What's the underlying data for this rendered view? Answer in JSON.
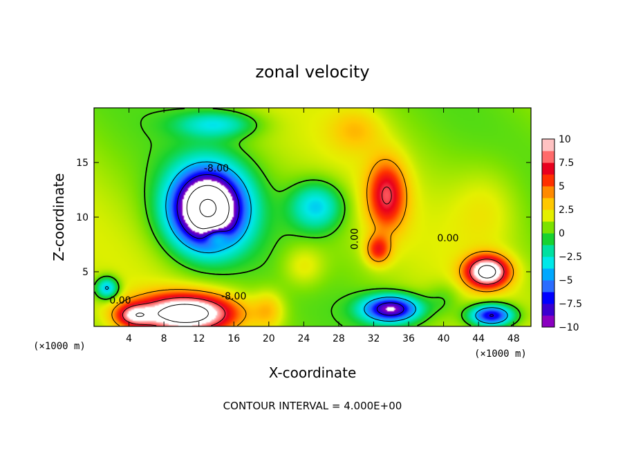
{
  "chart_data": {
    "type": "heatmap",
    "title": "zonal velocity",
    "xlabel": "X-coordinate",
    "ylabel": "Z-coordinate",
    "x_unit_label": "(×1000 m)",
    "xlim": [
      0,
      50
    ],
    "ylim": [
      0,
      20
    ],
    "x_ticks": [
      4,
      8,
      12,
      16,
      20,
      24,
      28,
      32,
      36,
      40,
      44,
      48
    ],
    "y_ticks": [
      5,
      10,
      15
    ],
    "colorbar": {
      "ticks": [
        "10",
        "7.5",
        "5",
        "2.5",
        "0",
        "−2.5",
        "−5",
        "−7.5",
        "−10"
      ],
      "min": -10,
      "max": 10,
      "colors": [
        "#8a00c0",
        "#3a00d0",
        "#0000ff",
        "#2b6cff",
        "#00a8ff",
        "#00e8e8",
        "#00e0a0",
        "#18d230",
        "#7ce200",
        "#e4f000",
        "#ffc800",
        "#ff8a00",
        "#ff3000",
        "#e8001e",
        "#ff6a6a",
        "#ffc2c2"
      ]
    },
    "contour_interval": 4.0,
    "contour_labels": [
      {
        "text": "-8.00",
        "x": 14,
        "z": 14.5
      },
      {
        "text": "0.00",
        "x": 29.8,
        "z": 8.0,
        "rotate": -90
      },
      {
        "text": "0.00",
        "x": 40.5,
        "z": 8.1
      },
      {
        "text": "-8.00",
        "x": 16,
        "z": 2.8
      },
      {
        "text": "0.00",
        "x": 3.0,
        "z": 2.4
      }
    ],
    "features": [
      {
        "x": 13,
        "z": 10.8,
        "sx": 4.2,
        "sz": 3.6,
        "amp": -17
      },
      {
        "x": 14,
        "z": 8.2,
        "sx": 1.3,
        "sz": 0.8,
        "amp": 4
      },
      {
        "x": 25.5,
        "z": 11,
        "sx": 3.0,
        "sz": 2.2,
        "amp": -5
      },
      {
        "x": 14,
        "z": 18.5,
        "sx": 4.5,
        "sz": 1.2,
        "amp": -4
      },
      {
        "x": 33.5,
        "z": 12,
        "sx": 2.2,
        "sz": 3.2,
        "amp": 6.5
      },
      {
        "x": 32.5,
        "z": 7,
        "sx": 1.4,
        "sz": 1.3,
        "amp": 5
      },
      {
        "x": 45,
        "z": 5,
        "sx": 2.4,
        "sz": 1.4,
        "amp": 12
      },
      {
        "x": 10.5,
        "z": 1.2,
        "sx": 5.5,
        "sz": 1.7,
        "amp": 13
      },
      {
        "x": 4.5,
        "z": 1.0,
        "sx": 2.0,
        "sz": 1.0,
        "amp": 6
      },
      {
        "x": 34,
        "z": 1.6,
        "sx": 3.2,
        "sz": 1.2,
        "amp": -11
      },
      {
        "x": 45.5,
        "z": 1.0,
        "sx": 2.5,
        "sz": 1.0,
        "amp": -10
      },
      {
        "x": 1.5,
        "z": 3.5,
        "sx": 1.3,
        "sz": 1.0,
        "amp": -6
      },
      {
        "x": 24,
        "z": 5.5,
        "sx": 2.5,
        "sz": 2.0,
        "amp": 2
      },
      {
        "x": 30,
        "z": 18,
        "sx": 3.0,
        "sz": 2.0,
        "amp": 2
      },
      {
        "x": 45,
        "z": 11,
        "sx": 4.0,
        "sz": 4.0,
        "amp": 1.5
      },
      {
        "x": 20,
        "z": 1.5,
        "sx": 1.8,
        "sz": 1.8,
        "amp": 2.5
      },
      {
        "x": 40,
        "z": 2.5,
        "sx": 2.0,
        "sz": 1.5,
        "amp": -1.5
      }
    ],
    "footer": "CONTOUR INTERVAL = 4.000E+00"
  }
}
